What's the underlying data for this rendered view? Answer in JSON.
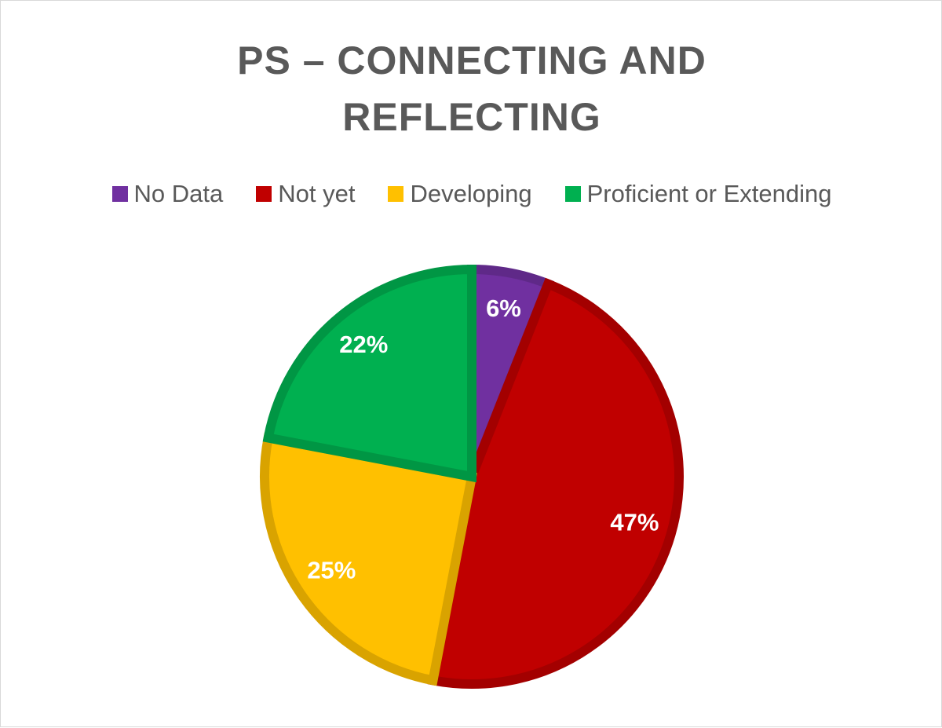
{
  "chart_data": {
    "type": "pie",
    "title": "PS – CONNECTING AND REFLECTING",
    "categories": [
      "No Data",
      "Not yet",
      "Developing",
      "Proficient or Extending"
    ],
    "values": [
      6,
      47,
      25,
      22
    ],
    "value_labels": [
      "6%",
      "47%",
      "25%",
      "22%"
    ],
    "colors": [
      "#7030a0",
      "#c00000",
      "#ffc000",
      "#00b050"
    ],
    "legend": "top"
  }
}
